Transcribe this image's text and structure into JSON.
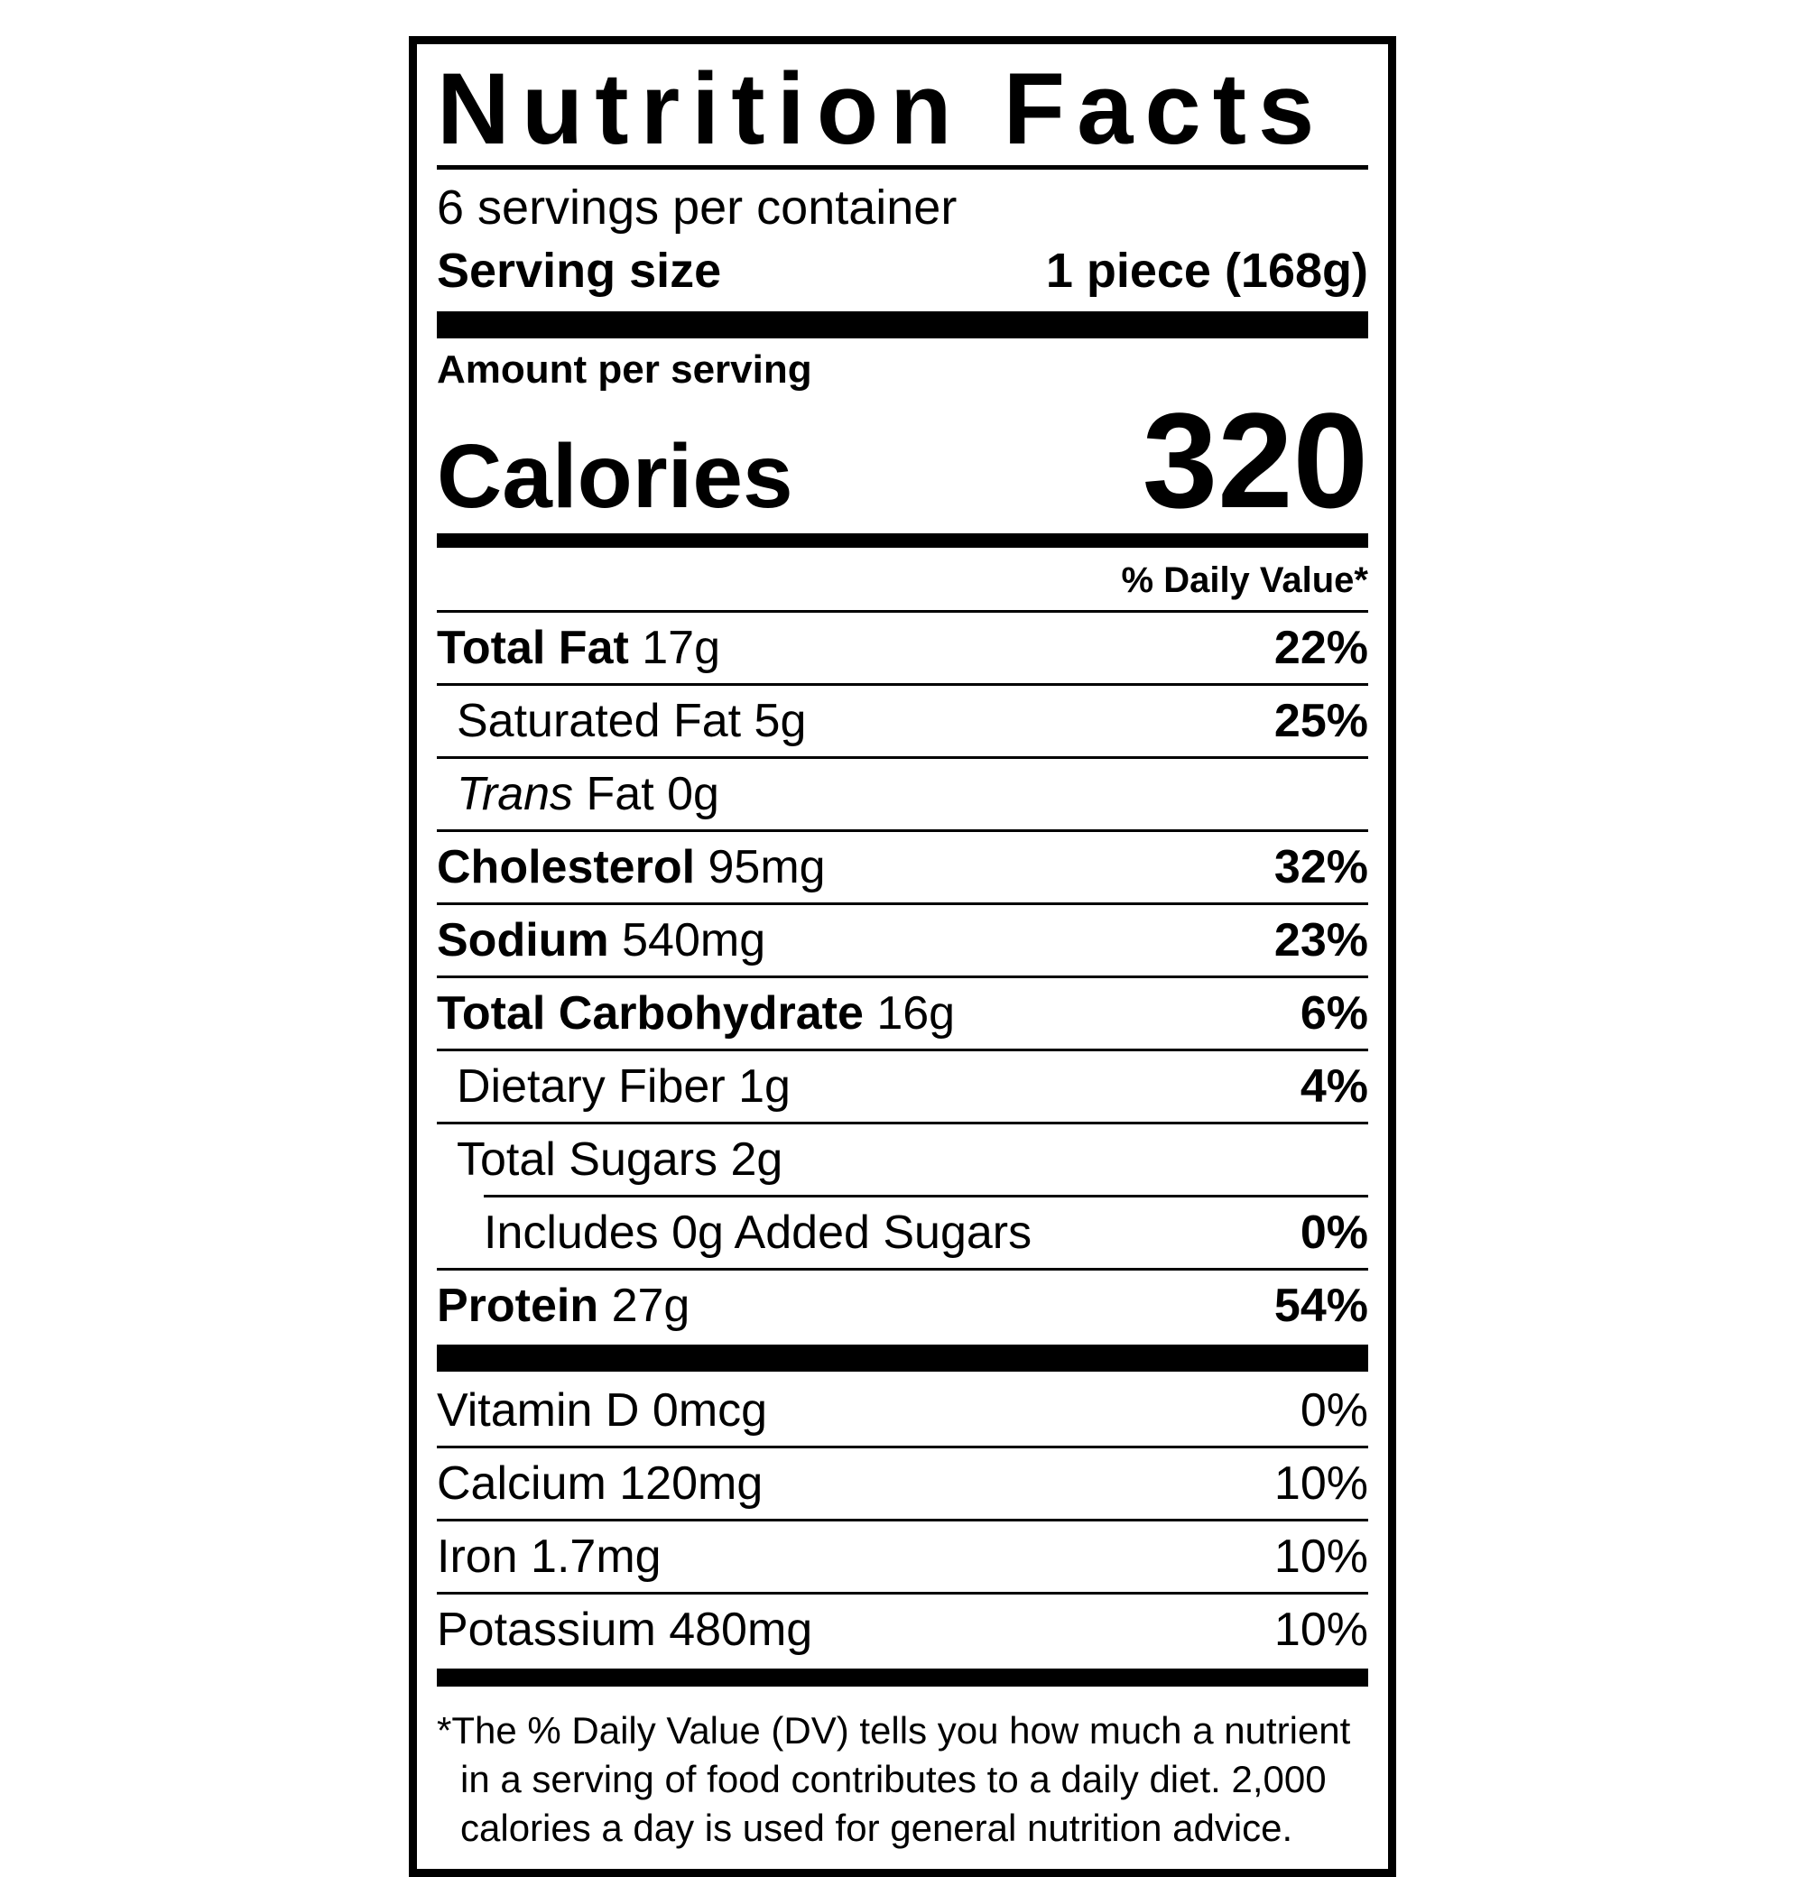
{
  "label": {
    "title": "Nutrition Facts",
    "servings_per_container": "6 servings per container",
    "serving_size_label": "Serving size",
    "serving_size_value": "1 piece (168g)",
    "amount_per_serving": "Amount per serving",
    "calories_label": "Calories",
    "calories_value": "320",
    "daily_value_header": "% Daily Value*",
    "nutrients": [
      {
        "name": "Total Fat",
        "amount": "17g",
        "dv": "22%"
      },
      {
        "name": "Saturated Fat",
        "amount": "5g",
        "dv": "25%"
      },
      {
        "name": "Trans",
        "amount": "Fat 0g",
        "dv": ""
      },
      {
        "name": "Cholesterol",
        "amount": "95mg",
        "dv": "32%"
      },
      {
        "name": "Sodium",
        "amount": "540mg",
        "dv": "23%"
      },
      {
        "name": "Total Carbohydrate",
        "amount": "16g",
        "dv": "6%"
      },
      {
        "name": "Dietary Fiber",
        "amount": "1g",
        "dv": "4%"
      },
      {
        "name": "Total Sugars",
        "amount": "2g",
        "dv": ""
      },
      {
        "name": "Includes 0g Added Sugars",
        "amount": "",
        "dv": "0%"
      },
      {
        "name": "Protein",
        "amount": "27g",
        "dv": "54%"
      }
    ],
    "micronutrients": [
      {
        "name": "Vitamin D 0mcg",
        "dv": "0%"
      },
      {
        "name": "Calcium 120mg",
        "dv": "10%"
      },
      {
        "name": "Iron 1.7mg",
        "dv": "10%"
      },
      {
        "name": "Potassium 480mg",
        "dv": "10%"
      }
    ],
    "footnote": "*The % Daily Value (DV) tells you how much a nutrient in a serving of food contributes to a daily diet. 2,000 calories a day is used for general nutrition advice.",
    "colors": {
      "ink": "#000000",
      "paper": "#ffffff"
    }
  }
}
